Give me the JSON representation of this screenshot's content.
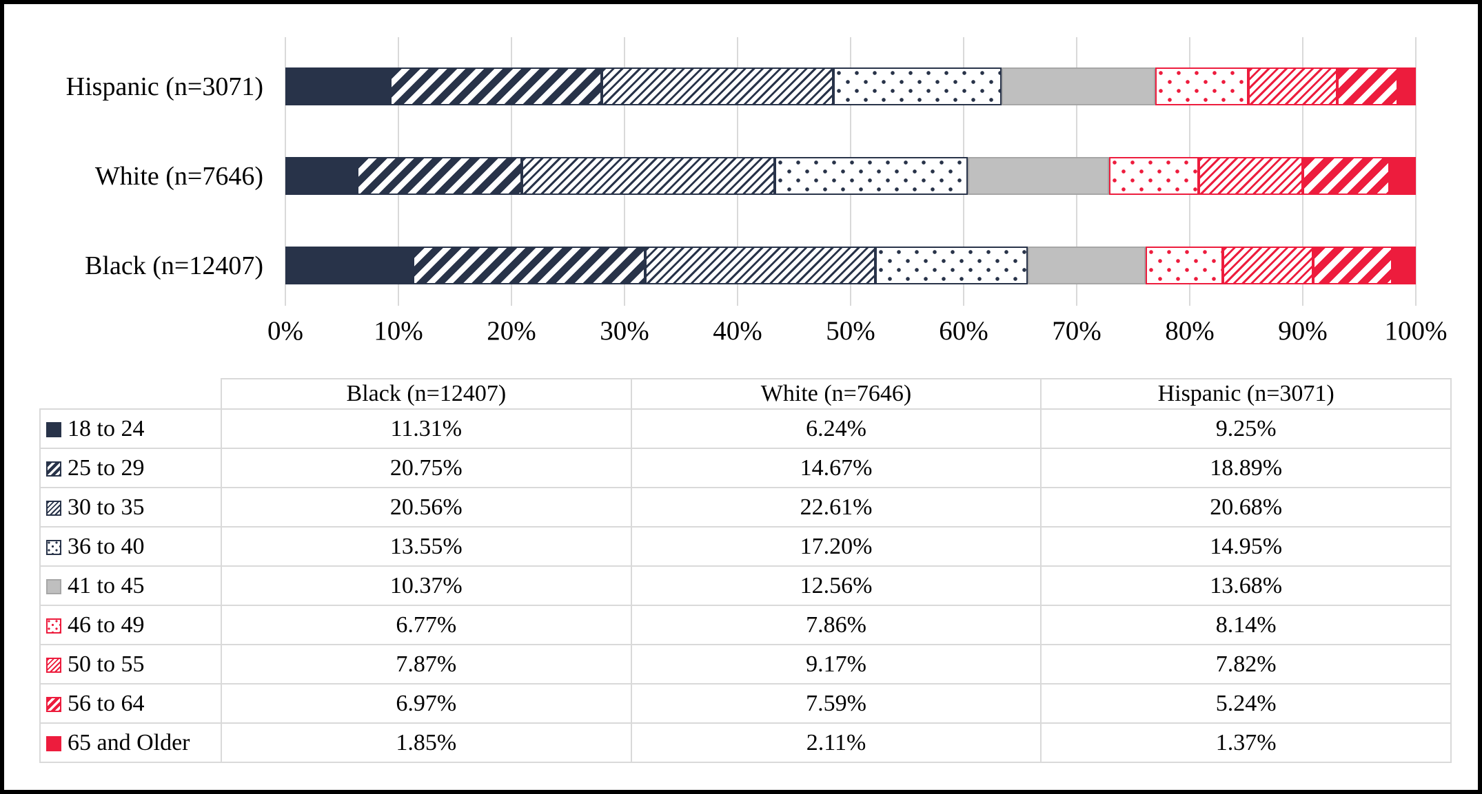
{
  "colors": {
    "navy": "#283349",
    "red": "#ED1C3D",
    "gray": "#BFBFBF",
    "gray_border": "#A6A6A6",
    "gridline": "#D9D9D9",
    "table_border": "#D9D9D9",
    "frame": "#000000",
    "background": "#FFFFFF",
    "text": "#000000"
  },
  "chart_data": {
    "type": "bar",
    "stacked": true,
    "orientation": "horizontal",
    "title": "",
    "xlabel": "",
    "ylabel": "",
    "xlim": [
      0,
      100
    ],
    "grid": "vertical",
    "x_ticks": [
      "0%",
      "10%",
      "20%",
      "30%",
      "40%",
      "50%",
      "60%",
      "70%",
      "80%",
      "90%",
      "100%"
    ],
    "bars_top_to_bottom": [
      {
        "id": "hispanic",
        "label": "Hispanic (n=3071)"
      },
      {
        "id": "white",
        "label": "White (n=7646)"
      },
      {
        "id": "black",
        "label": "Black (n=12407)"
      }
    ],
    "series": [
      {
        "label": "18 to 24",
        "pattern": "navy-solid",
        "values": {
          "black": "11.31%",
          "white": "6.24%",
          "hispanic": "9.25%"
        }
      },
      {
        "label": "25 to 29",
        "pattern": "navy-stripe-wide",
        "values": {
          "black": "20.75%",
          "white": "14.67%",
          "hispanic": "18.89%"
        }
      },
      {
        "label": "30 to 35",
        "pattern": "navy-hatch-thin",
        "values": {
          "black": "20.56%",
          "white": "22.61%",
          "hispanic": "20.68%"
        }
      },
      {
        "label": "36 to 40",
        "pattern": "navy-dots",
        "values": {
          "black": "13.55%",
          "white": "17.20%",
          "hispanic": "14.95%"
        }
      },
      {
        "label": "41 to 45",
        "pattern": "gray-solid",
        "values": {
          "black": "10.37%",
          "white": "12.56%",
          "hispanic": "13.68%"
        }
      },
      {
        "label": "46 to 49",
        "pattern": "red-dots",
        "values": {
          "black": "6.77%",
          "white": "7.86%",
          "hispanic": "8.14%"
        }
      },
      {
        "label": "50 to 55",
        "pattern": "red-hatch-thin",
        "values": {
          "black": "7.87%",
          "white": "9.17%",
          "hispanic": "7.82%"
        }
      },
      {
        "label": "56 to 64",
        "pattern": "red-stripe-wide",
        "values": {
          "black": "6.97%",
          "white": "7.59%",
          "hispanic": "5.24%"
        }
      },
      {
        "label": "65 and Older",
        "pattern": "red-solid",
        "values": {
          "black": "1.85%",
          "white": "2.11%",
          "hispanic": "1.37%"
        }
      }
    ]
  },
  "table": {
    "columns": [
      {
        "id": "black",
        "header": "Black (n=12407)"
      },
      {
        "id": "white",
        "header": "White (n=7646)"
      },
      {
        "id": "hispanic",
        "header": "Hispanic (n=3071)"
      }
    ]
  }
}
